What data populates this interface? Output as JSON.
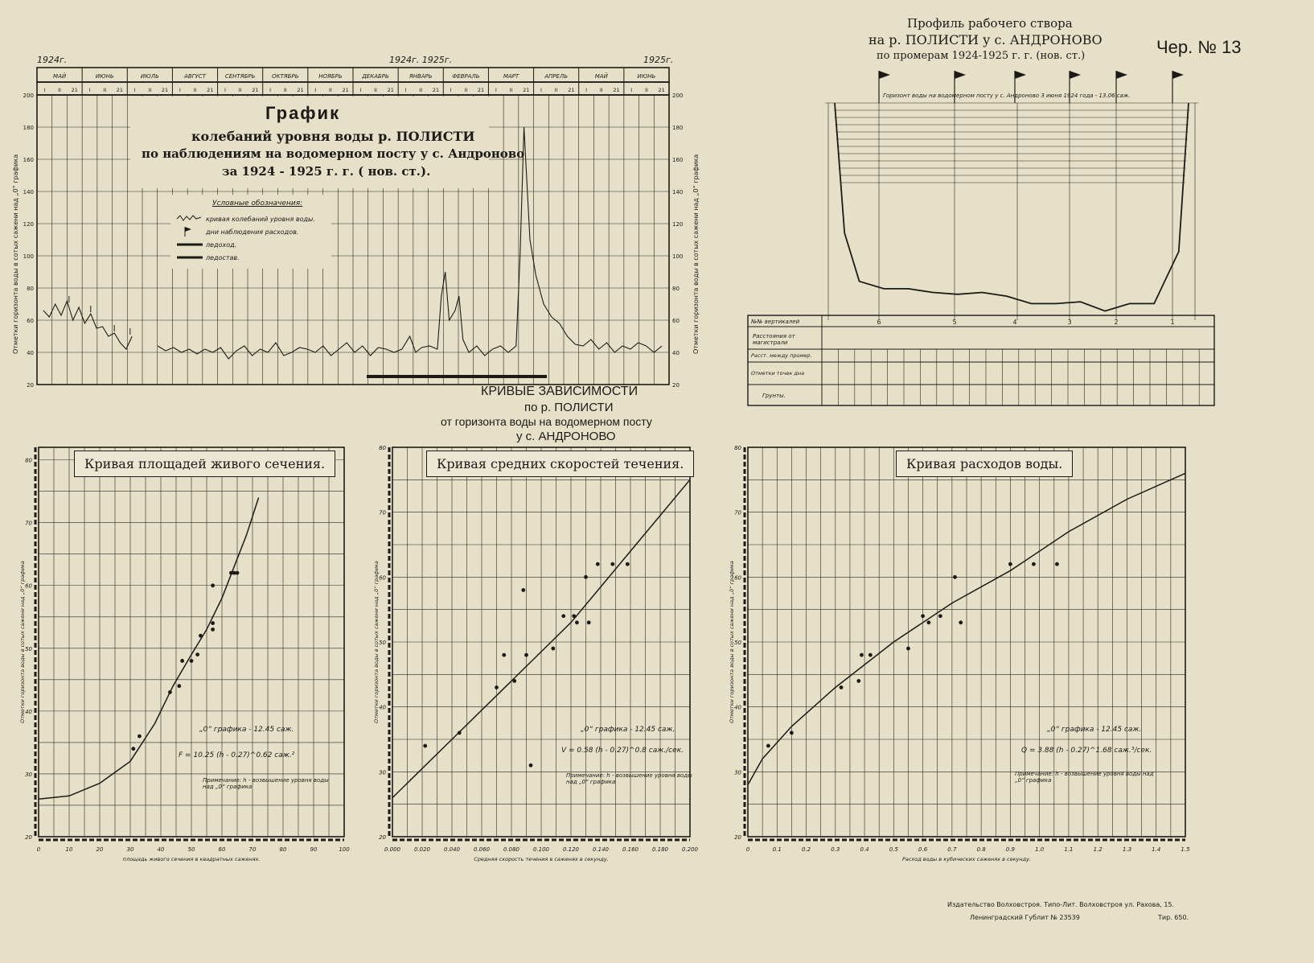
{
  "sheet_number": "Чер. № 13",
  "publisher_line1": "Издательство Волховстроя. Типо-Лит. Волховстроя ул. Рахова, 15.",
  "publisher_line2": "Ленинградский Гублит № 23539",
  "publisher_circulation": "Тир. 650.",
  "stage_chart": {
    "title": "График",
    "subtitle1": "колебаний уровня воды р. ПОЛИСТИ",
    "subtitle2": "по наблюдениям на водомерном посту у с. Андроново",
    "subtitle3": "за 1924 - 1925 г. г. ( нов. ст.).",
    "year_left": "1924г.",
    "year_mid": "1924г. 1925г.",
    "year_right": "1925г.",
    "months": [
      "МАЙ",
      "ИЮНЬ",
      "ИЮЛЬ",
      "АВГУСТ",
      "СЕНТЯБРЬ",
      "ОКТЯБРЬ",
      "НОЯБРЬ",
      "ДЕКАБРЬ",
      "ЯНВАРЬ",
      "ФЕВРАЛЬ",
      "МАРТ",
      "АПРЕЛЬ",
      "МАЙ",
      "ИЮНЬ"
    ],
    "decade_ticks": [
      "I",
      "II",
      "21"
    ],
    "y_ticks": [
      20,
      40,
      60,
      80,
      100,
      120,
      140,
      160,
      180,
      200
    ],
    "ylabel": "Отметки горизонта воды в сотых сажени над „0“ графика",
    "legend_title": "Условные обозначения:",
    "legend_items": [
      "кривая колебаний уровня воды.",
      "дни наблюдения расходов.",
      "ледоход.",
      "ледостав."
    ]
  },
  "profile": {
    "title1": "Профиль рабочего створа",
    "title2": "на р. ПОЛИСТИ у с. АНДРОНОВО",
    "title3": "по промерам 1924-1925 г. г. (нов. ст.)",
    "water_note": "Горизонт воды на водомерном посту у с. Андроново 3 июня 1924 года - 13.06 саж.",
    "table_rows": [
      "№№ вертикалей",
      "Расстояния от магистрали",
      "Расст. между промер.",
      "Отметки точек дна",
      "Грунты."
    ],
    "verticals": [
      "6",
      "5",
      "4",
      "3",
      "2",
      "1"
    ]
  },
  "curves_heading": {
    "line1": "КРИВЫЕ ЗАВИСИМОСТИ",
    "line2": "по р. ПОЛИСТИ",
    "line3": "от горизонта воды на водомерном посту",
    "line4": "у с. АНДРОНОВО"
  },
  "chart_data": [
    {
      "type": "line",
      "title": "График колебаний уровня воды р. ПОЛИСТИ",
      "xlabel": "",
      "ylabel": "Отметки горизонта воды в сотых сажени над „0“ графика",
      "ylim": [
        20,
        200
      ],
      "x_unit": "months May 1924 – June 1925",
      "series": [
        {
          "values": [
            [
              0.0,
              66
            ],
            [
              0.3,
              62
            ],
            [
              0.6,
              70
            ],
            [
              0.9,
              63
            ],
            [
              1.2,
              72
            ],
            [
              1.5,
              60
            ],
            [
              1.8,
              68
            ],
            [
              2.1,
              58
            ],
            [
              2.4,
              64
            ],
            [
              2.7,
              55
            ],
            [
              3.0,
              56
            ],
            [
              3.3,
              50
            ],
            [
              3.6,
              52
            ],
            [
              3.9,
              46
            ],
            [
              4.2,
              42
            ],
            [
              4.5,
              50
            ],
            [
              5.8,
              44
            ],
            [
              6.2,
              41
            ],
            [
              6.6,
              43
            ],
            [
              7.0,
              40
            ],
            [
              7.4,
              42
            ],
            [
              7.8,
              39
            ],
            [
              8.2,
              42
            ],
            [
              8.6,
              40
            ],
            [
              9.0,
              43
            ],
            [
              9.4,
              36
            ],
            [
              9.8,
              41
            ],
            [
              10.2,
              44
            ],
            [
              10.6,
              38
            ],
            [
              11.0,
              42
            ],
            [
              11.4,
              40
            ],
            [
              11.8,
              46
            ],
            [
              12.2,
              38
            ],
            [
              12.6,
              40
            ],
            [
              13.0,
              43
            ],
            [
              13.4,
              42
            ],
            [
              13.8,
              40
            ],
            [
              14.2,
              44
            ],
            [
              14.6,
              38
            ],
            [
              15.0,
              42
            ],
            [
              15.4,
              46
            ],
            [
              15.8,
              40
            ],
            [
              16.2,
              44
            ],
            [
              16.6,
              38
            ],
            [
              17.0,
              43
            ],
            [
              17.4,
              42
            ],
            [
              17.8,
              40
            ],
            [
              18.2,
              42
            ],
            [
              18.6,
              50
            ],
            [
              18.9,
              40
            ],
            [
              19.2,
              43
            ],
            [
              19.6,
              44
            ],
            [
              20.0,
              42
            ],
            [
              20.2,
              75
            ],
            [
              20.4,
              90
            ],
            [
              20.6,
              60
            ],
            [
              20.9,
              66
            ],
            [
              21.1,
              75
            ],
            [
              21.3,
              48
            ],
            [
              21.6,
              40
            ],
            [
              22.0,
              44
            ],
            [
              22.4,
              38
            ],
            [
              22.8,
              42
            ],
            [
              23.2,
              44
            ],
            [
              23.6,
              40
            ],
            [
              24.0,
              44
            ],
            [
              24.2,
              100
            ],
            [
              24.4,
              180
            ],
            [
              24.7,
              110
            ],
            [
              25.0,
              88
            ],
            [
              25.4,
              70
            ],
            [
              25.8,
              62
            ],
            [
              26.2,
              58
            ],
            [
              26.6,
              50
            ],
            [
              27.0,
              45
            ],
            [
              27.4,
              44
            ],
            [
              27.8,
              48
            ],
            [
              28.2,
              42
            ],
            [
              28.6,
              46
            ],
            [
              29.0,
              40
            ],
            [
              29.4,
              44
            ],
            [
              29.8,
              42
            ],
            [
              30.2,
              46
            ],
            [
              30.6,
              44
            ],
            [
              31.0,
              40
            ],
            [
              31.4,
              44
            ]
          ]
        }
      ]
    },
    {
      "type": "line",
      "title": "Профиль рабочего створа",
      "xlabel": "",
      "ylabel": "",
      "series": [
        {
          "values": [
            [
              0,
              0
            ],
            [
              2,
              70
            ],
            [
              5,
              96
            ],
            [
              10,
              100
            ],
            [
              15,
              100
            ],
            [
              20,
              102
            ],
            [
              25,
              103
            ],
            [
              30,
              102
            ],
            [
              35,
              104
            ],
            [
              40,
              108
            ],
            [
              45,
              108
            ],
            [
              50,
              107
            ],
            [
              55,
              112
            ],
            [
              60,
              108
            ],
            [
              65,
              108
            ],
            [
              70,
              80
            ],
            [
              72,
              0
            ]
          ]
        }
      ]
    },
    {
      "type": "scatter",
      "title": "Кривая площадей живого сечения.",
      "xlabel": "площадь живого сечения в квадратных саженях.",
      "ylabel": "Отметки горизонта воды в сотых сажени над „0“ графика",
      "xlim": [
        0,
        100
      ],
      "ylim": [
        20,
        82
      ],
      "x_ticks": [
        0,
        10,
        20,
        30,
        40,
        50,
        60,
        70,
        80,
        90,
        100
      ],
      "y_ticks": [
        20,
        30,
        40,
        50,
        60,
        70,
        80
      ],
      "annotation1": "„0“ графика - 12.45 саж.",
      "annotation2": "F = 10.25 (h - 0.27)^0.62 саж.²",
      "annotation3": "Примечание: h - возвышение уровня воды над „0“ графика",
      "points": [
        [
          31,
          34
        ],
        [
          33,
          36
        ],
        [
          43,
          43
        ],
        [
          46,
          44
        ],
        [
          47,
          48
        ],
        [
          50,
          48
        ],
        [
          52,
          49
        ],
        [
          53,
          52
        ],
        [
          57,
          54
        ],
        [
          57,
          53
        ],
        [
          57,
          60
        ],
        [
          63,
          62
        ],
        [
          64,
          62
        ],
        [
          65,
          62
        ]
      ],
      "curve": [
        [
          0,
          26
        ],
        [
          10,
          26.5
        ],
        [
          20,
          28.5
        ],
        [
          30,
          32
        ],
        [
          38,
          38
        ],
        [
          44,
          44
        ],
        [
          50,
          49
        ],
        [
          55,
          53
        ],
        [
          60,
          58
        ],
        [
          64,
          63
        ],
        [
          68,
          68
        ],
        [
          72,
          74
        ]
      ]
    },
    {
      "type": "scatter",
      "title": "Кривая средних скоростей течения.",
      "xlabel": "Средняя скорость течения в саженях в секунду.",
      "ylabel": "Отметки горизонта воды в сотых сажени над „0“ графика",
      "xlim": [
        0,
        0.2
      ],
      "ylim": [
        20,
        80
      ],
      "x_ticks": [
        "0.000",
        "0.020",
        "0.040",
        "0.060",
        "0.080",
        "0.100",
        "0.120",
        "0.140",
        "0.160",
        "0.180",
        "0.200"
      ],
      "y_ticks": [
        20,
        30,
        40,
        50,
        60,
        70,
        80
      ],
      "annotation1": "„0“ графика - 12.45 саж.",
      "annotation2": "V = 0.58 (h - 0.27)^0.8 саж./сек.",
      "annotation3": "Примечание: h - возвышение уровня воды над „0“ графика",
      "points": [
        [
          0.022,
          34
        ],
        [
          0.045,
          36
        ],
        [
          0.07,
          43
        ],
        [
          0.075,
          48
        ],
        [
          0.082,
          44
        ],
        [
          0.09,
          48
        ],
        [
          0.088,
          58
        ],
        [
          0.093,
          31
        ],
        [
          0.108,
          49
        ],
        [
          0.115,
          54
        ],
        [
          0.122,
          54
        ],
        [
          0.124,
          53
        ],
        [
          0.13,
          60
        ],
        [
          0.132,
          53
        ],
        [
          0.138,
          62
        ],
        [
          0.148,
          62
        ],
        [
          0.158,
          62
        ]
      ],
      "curve": [
        [
          0,
          26
        ],
        [
          0.04,
          35
        ],
        [
          0.08,
          44
        ],
        [
          0.12,
          53
        ],
        [
          0.16,
          64
        ],
        [
          0.2,
          75
        ]
      ]
    },
    {
      "type": "scatter",
      "title": "Кривая расходов воды.",
      "xlabel": "Расход воды в кубических саженях в секунду.",
      "ylabel": "Отметки горизонта воды в сотых сажени над „0“ графика",
      "xlim": [
        0,
        1.5
      ],
      "ylim": [
        20,
        80
      ],
      "x_ticks": [
        "0",
        "0.1",
        "0.2",
        "0.3",
        "0.4",
        "0.5",
        "0.6",
        "0.7",
        "0.8",
        "0.9",
        "1.0",
        "1.1",
        "1.2",
        "1.3",
        "1.4",
        "1.5"
      ],
      "y_ticks": [
        20,
        30,
        40,
        50,
        60,
        70,
        80
      ],
      "annotation1": "„0“ графика - 12.45 саж.",
      "annotation2": "Q = 3.88 (h - 0.27)^1.68 саж.³/сек.",
      "annotation3": "Примечание: h - возвышение уровня воды над „0“ графика",
      "points": [
        [
          0.07,
          34
        ],
        [
          0.15,
          36
        ],
        [
          0.32,
          43
        ],
        [
          0.38,
          44
        ],
        [
          0.39,
          48
        ],
        [
          0.42,
          48
        ],
        [
          0.55,
          49
        ],
        [
          0.6,
          54
        ],
        [
          0.62,
          53
        ],
        [
          0.66,
          54
        ],
        [
          0.71,
          60
        ],
        [
          0.73,
          53
        ],
        [
          0.9,
          62
        ],
        [
          0.98,
          62
        ],
        [
          1.06,
          62
        ]
      ],
      "curve": [
        [
          0,
          28
        ],
        [
          0.05,
          32
        ],
        [
          0.15,
          37
        ],
        [
          0.3,
          43
        ],
        [
          0.5,
          50
        ],
        [
          0.7,
          56
        ],
        [
          0.9,
          61
        ],
        [
          1.1,
          67
        ],
        [
          1.3,
          72
        ],
        [
          1.5,
          76
        ]
      ]
    }
  ]
}
